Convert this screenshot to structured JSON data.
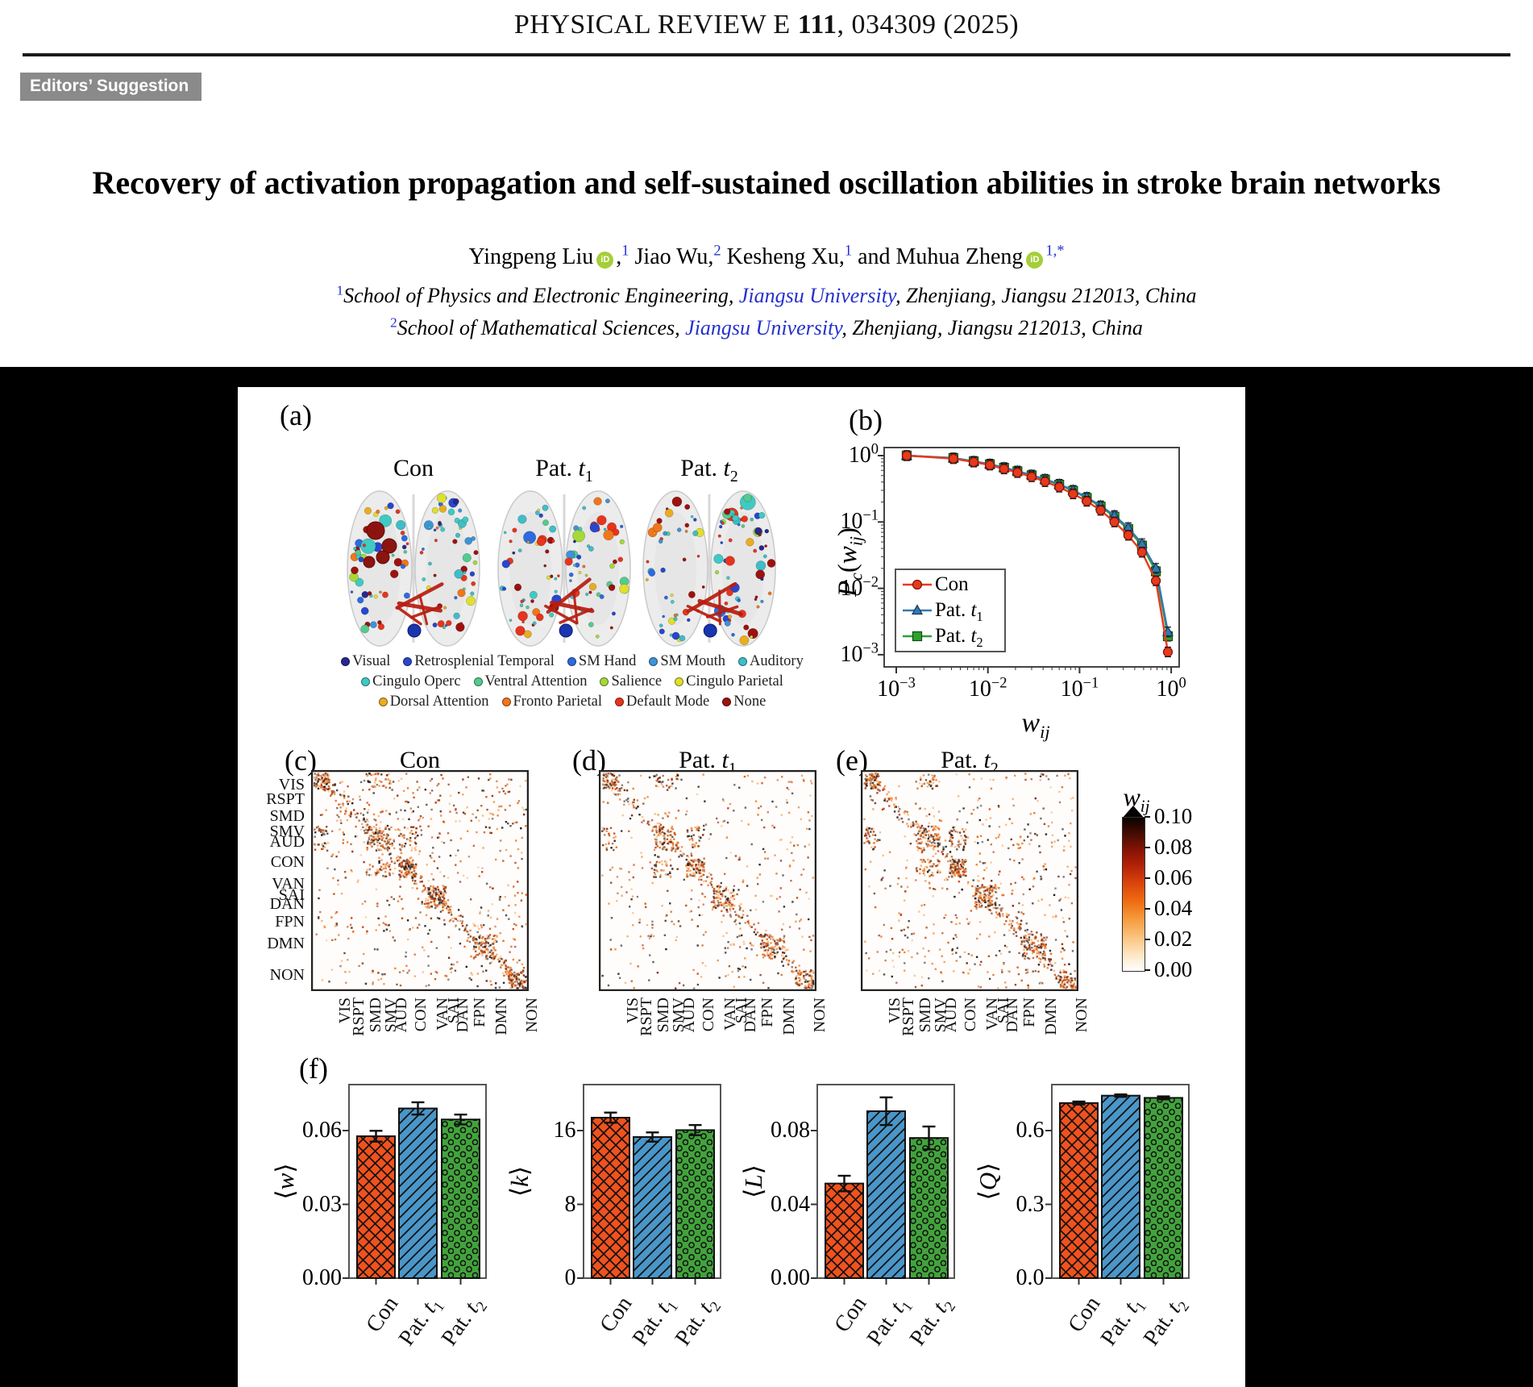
{
  "page": {
    "journal": {
      "pre": "PHYSICAL REVIEW E ",
      "vol": "111",
      "post": ", 034309 (2025)"
    },
    "badge": "Editors’ Suggestion",
    "title": "Recovery of activation propagation and self-sustained oscillation abilities in stroke brain networks",
    "authors": [
      {
        "name": "Yingpeng Liu",
        "orcid": true,
        "comma": ",",
        "sup": "1"
      },
      {
        "name": "Jiao Wu",
        "orcid": false,
        "comma": ",",
        "sup": "2"
      },
      {
        "name": "Kesheng Xu",
        "orcid": false,
        "comma": ",",
        "sup": "1"
      },
      {
        "name": "and Muhua Zheng",
        "orcid": true,
        "comma": "",
        "sup": "1,*"
      }
    ],
    "affiliations": [
      {
        "sup": "1",
        "pre": "School of Physics and Electronic Engineering, ",
        "link": "Jiangsu University",
        "post": ", Zhenjiang, Jiangsu 212013, China"
      },
      {
        "sup": "2",
        "pre": "School of Mathematical Sciences, ",
        "link": "Jiangsu University",
        "post": ", Zhenjiang, Jiangsu 212013, China"
      }
    ]
  },
  "figure": {
    "panel_labels": {
      "a": "(a)",
      "b": "(b)",
      "c": "(c)",
      "d": "(d)",
      "e": "(e)",
      "f": "(f)"
    },
    "panel_a": {
      "titles": [
        [
          {
            "t": "Con"
          }
        ],
        [
          {
            "t": "Pat. "
          },
          {
            "t": "t",
            "i": 1
          },
          {
            "t": "1",
            "sub": 1
          }
        ],
        [
          {
            "t": "Pat. "
          },
          {
            "t": "t",
            "i": 1
          },
          {
            "t": "2",
            "sub": 1
          }
        ]
      ],
      "legend_rows": [
        [
          {
            "label": "Visual",
            "color": "#28288e"
          },
          {
            "label": "Retrosplenial Temporal",
            "color": "#2847cd"
          },
          {
            "label": "SM Hand",
            "color": "#2d6bdf"
          },
          {
            "label": "SM Mouth",
            "color": "#3e93d6"
          },
          {
            "label": "Auditory",
            "color": "#3fbdc8"
          }
        ],
        [
          {
            "label": "Cingulo Operc",
            "color": "#3fcac3"
          },
          {
            "label": "Ventral Attention",
            "color": "#55ca8f"
          },
          {
            "label": "Salience",
            "color": "#a5d838"
          },
          {
            "label": "Cingulo Parietal",
            "color": "#dfdf2e"
          }
        ],
        [
          {
            "label": "Dorsal Attention",
            "color": "#e9ad1f"
          },
          {
            "label": "Fronto Parietal",
            "color": "#f1761b"
          },
          {
            "label": "Default Mode",
            "color": "#e6351c"
          },
          {
            "label": "None",
            "color": "#9c120e"
          }
        ]
      ]
    },
    "panel_b": {
      "xlabel": [
        {
          "t": "w",
          "i": 1
        },
        {
          "t": "ij",
          "sub": 1,
          "i": 1
        }
      ],
      "ylabel": [
        {
          "t": "P",
          "i": 1
        },
        {
          "t": "c",
          "sub": 1,
          "i": 1
        },
        {
          "t": "("
        },
        {
          "t": "w",
          "i": 1
        },
        {
          "t": "ij",
          "sub": 1,
          "i": 1
        },
        {
          "t": ")"
        }
      ],
      "xtick_labels": [
        [
          {
            "t": "10"
          },
          {
            "t": "−3",
            "sup": 1
          }
        ],
        [
          {
            "t": "10"
          },
          {
            "t": "−2",
            "sup": 1
          }
        ],
        [
          {
            "t": "10"
          },
          {
            "t": "−1",
            "sup": 1
          }
        ],
        [
          {
            "t": "10"
          },
          {
            "t": "0",
            "sup": 1
          }
        ]
      ],
      "ytick_labels": [
        [
          {
            "t": "10"
          },
          {
            "t": "0",
            "sup": 1
          }
        ],
        [
          {
            "t": "10"
          },
          {
            "t": "−1",
            "sup": 1
          }
        ],
        [
          {
            "t": "10"
          },
          {
            "t": "−2",
            "sup": 1
          }
        ],
        [
          {
            "t": "10"
          },
          {
            "t": "−3",
            "sup": 1
          }
        ]
      ],
      "legend_labels": [
        [
          {
            "t": "Con"
          }
        ],
        [
          {
            "t": "Pat. "
          },
          {
            "t": "t",
            "i": 1
          },
          {
            "t": "1",
            "sub": 1
          }
        ],
        [
          {
            "t": "Pat. "
          },
          {
            "t": "t",
            "i": 1
          },
          {
            "t": "2",
            "sub": 1
          }
        ]
      ]
    },
    "matrices": {
      "titles": [
        [
          {
            "t": "Con"
          }
        ],
        [
          {
            "t": "Pat. "
          },
          {
            "t": "t",
            "i": 1
          },
          {
            "t": "1",
            "sub": 1
          }
        ],
        [
          {
            "t": "Pat. "
          },
          {
            "t": "t",
            "i": 1
          },
          {
            "t": "2",
            "sub": 1
          }
        ]
      ],
      "group_labels": [
        "VIS",
        "RSPT",
        "SMD",
        "SMV",
        "AUD",
        "CON",
        "VAN",
        "SAI",
        "DAN",
        "FPN",
        "DMN",
        "NON"
      ],
      "group_fractions": [
        0.07,
        0.135,
        0.21,
        0.28,
        0.33,
        0.42,
        0.52,
        0.57,
        0.61,
        0.69,
        0.79,
        0.93
      ],
      "colorbar": {
        "title": [
          {
            "t": "w",
            "i": 1
          },
          {
            "t": "ij",
            "sub": 1,
            "i": 1
          }
        ],
        "tick_labels": [
          "0.10",
          "0.08",
          "0.06",
          "0.04",
          "0.02",
          "0.00"
        ]
      }
    },
    "panel_f": {
      "cat_labels": [
        [
          {
            "t": "Con"
          }
        ],
        [
          {
            "t": "Pat. "
          },
          {
            "t": "t",
            "i": 1
          },
          {
            "t": "1",
            "sub": 1
          }
        ],
        [
          {
            "t": "Pat. "
          },
          {
            "t": "t",
            "i": 1
          },
          {
            "t": "2",
            "sub": 1
          }
        ]
      ],
      "ylabels": [
        [
          {
            "t": "⟨"
          },
          {
            "t": "w",
            "i": 1
          },
          {
            "t": "⟩"
          }
        ],
        [
          {
            "t": "⟨"
          },
          {
            "t": "k",
            "i": 1
          },
          {
            "t": "⟩"
          }
        ],
        [
          {
            "t": "⟨"
          },
          {
            "t": "L",
            "i": 1
          },
          {
            "t": "⟩"
          }
        ],
        [
          {
            "t": "⟨"
          },
          {
            "t": "Q",
            "i": 1
          },
          {
            "t": "⟩"
          }
        ]
      ],
      "ytick_labels": [
        [
          "0.00",
          "0.03",
          "0.06"
        ],
        [
          "0",
          "8",
          "16"
        ],
        [
          "0.00",
          "0.04",
          "0.08"
        ],
        [
          "0.0",
          "0.3",
          "0.6"
        ]
      ]
    }
  },
  "chart_data": [
    {
      "id": "b",
      "type": "line",
      "xscale": "log",
      "yscale": "log",
      "title": "",
      "xlabel": "w_ij",
      "ylabel": "Pc(w_ij)",
      "xlim": [
        0.001,
        1
      ],
      "ylim": [
        0.001,
        1
      ],
      "grid": false,
      "legend_position": "lower-left",
      "x": [
        0.0013,
        0.0042,
        0.007,
        0.0105,
        0.015,
        0.021,
        0.03,
        0.042,
        0.06,
        0.085,
        0.12,
        0.17,
        0.24,
        0.34,
        0.48,
        0.68,
        0.92
      ],
      "series": [
        {
          "name": "Con",
          "marker": "circle",
          "color": "#e8391d",
          "values": [
            1.0,
            0.9,
            0.8,
            0.72,
            0.63,
            0.555,
            0.48,
            0.405,
            0.335,
            0.265,
            0.205,
            0.15,
            0.1,
            0.063,
            0.035,
            0.013,
            0.0011
          ]
        },
        {
          "name": "Pat. t1",
          "marker": "triangle",
          "color": "#3579b1",
          "values": [
            1.0,
            0.92,
            0.82,
            0.745,
            0.66,
            0.585,
            0.51,
            0.44,
            0.37,
            0.3,
            0.235,
            0.175,
            0.125,
            0.082,
            0.047,
            0.02,
            0.0022
          ]
        },
        {
          "name": "Pat. t2",
          "marker": "square",
          "color": "#2ea12e",
          "values": [
            1.0,
            0.92,
            0.82,
            0.74,
            0.655,
            0.58,
            0.505,
            0.435,
            0.365,
            0.295,
            0.23,
            0.17,
            0.12,
            0.078,
            0.044,
            0.018,
            0.0019
          ]
        }
      ]
    },
    {
      "id": "c",
      "type": "heatmap",
      "title": "Con",
      "axis_groups": [
        "VIS",
        "RSPT",
        "SMD",
        "SMV",
        "AUD",
        "CON",
        "VAN",
        "SAI",
        "DAN",
        "FPN",
        "DMN",
        "NON"
      ],
      "value_label": "w_ij",
      "value_range": [
        0.0,
        0.1
      ],
      "seed": 11,
      "density": 1.0
    },
    {
      "id": "d",
      "type": "heatmap",
      "title": "Pat. t1",
      "axis_groups": [
        "VIS",
        "RSPT",
        "SMD",
        "SMV",
        "AUD",
        "CON",
        "VAN",
        "SAI",
        "DAN",
        "FPN",
        "DMN",
        "NON"
      ],
      "value_label": "w_ij",
      "value_range": [
        0.0,
        0.1
      ],
      "seed": 22,
      "density": 0.72
    },
    {
      "id": "e",
      "type": "heatmap",
      "title": "Pat. t2",
      "axis_groups": [
        "VIS",
        "RSPT",
        "SMD",
        "SMV",
        "AUD",
        "CON",
        "VAN",
        "SAI",
        "DAN",
        "FPN",
        "DMN",
        "NON"
      ],
      "value_label": "w_ij",
      "value_range": [
        0.0,
        0.1
      ],
      "seed": 33,
      "density": 0.88
    },
    {
      "id": "f1",
      "type": "bar",
      "ylabel": "<w>",
      "categories": [
        "Con",
        "Pat. t1",
        "Pat. t2"
      ],
      "values": [
        0.0577,
        0.069,
        0.0645
      ],
      "errors": [
        0.0022,
        0.0025,
        0.002
      ],
      "yticks": [
        0,
        0.03,
        0.06
      ],
      "ylim": [
        0,
        0.0787
      ]
    },
    {
      "id": "f2",
      "type": "bar",
      "ylabel": "<k>",
      "categories": [
        "Con",
        "Pat. t1",
        "Pat. t2"
      ],
      "values": [
        17.4,
        15.3,
        16.05
      ],
      "errors": [
        0.55,
        0.5,
        0.55
      ],
      "yticks": [
        0,
        8,
        16
      ],
      "ylim": [
        0,
        21
      ]
    },
    {
      "id": "f3",
      "type": "bar",
      "ylabel": "<L>",
      "categories": [
        "Con",
        "Pat. t1",
        "Pat. t2"
      ],
      "values": [
        0.0513,
        0.0905,
        0.076
      ],
      "errors": [
        0.0042,
        0.0075,
        0.0062
      ],
      "yticks": [
        0,
        0.04,
        0.08
      ],
      "ylim": [
        0,
        0.105
      ]
    },
    {
      "id": "f4",
      "type": "bar",
      "ylabel": "<Q>",
      "categories": [
        "Con",
        "Pat. t1",
        "Pat. t2"
      ],
      "values": [
        0.712,
        0.742,
        0.733
      ],
      "errors": [
        0.006,
        0.005,
        0.006
      ],
      "yticks": [
        0,
        0.3,
        0.6
      ],
      "ylim": [
        0,
        0.81
      ]
    }
  ],
  "style": {
    "bar_colors": [
      "#f0521e",
      "#4a96c8",
      "#42a33c"
    ],
    "bar_hatches": [
      "x",
      "/",
      "o"
    ],
    "accent_blue": "#2430cc",
    "orcid_green": "#a6ce39",
    "badge_gray": "#8a8a8a"
  }
}
